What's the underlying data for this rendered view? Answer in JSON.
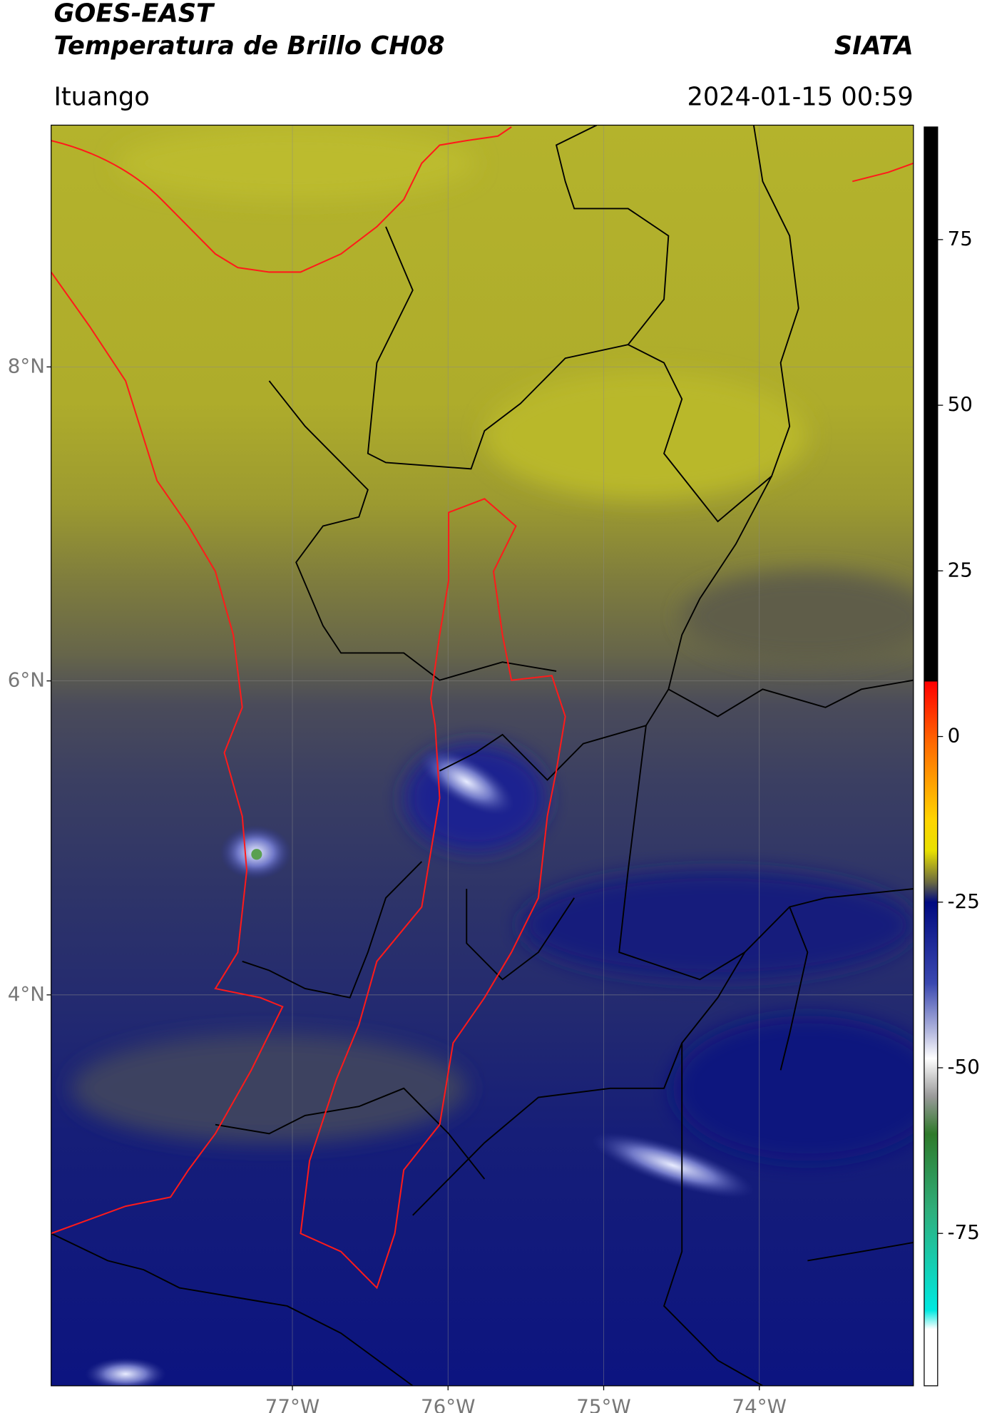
{
  "header": {
    "title": "GOES-EAST",
    "subtitle": "Temperatura de Brillo CH08",
    "brand": "SIATA",
    "region": "Ituango",
    "timestamp": "2024-01-15 00:59"
  },
  "map": {
    "lon_range": [
      -78.55,
      -73.01
    ],
    "lat_range": [
      1.51,
      9.54
    ],
    "lat_ticks": [
      {
        "value": 8,
        "label": "8°N"
      },
      {
        "value": 6,
        "label": "6°N"
      },
      {
        "value": 4,
        "label": "4°N"
      }
    ],
    "lon_ticks": [
      {
        "value": -77,
        "label": "77°W"
      },
      {
        "value": -76,
        "label": "76°W"
      },
      {
        "value": -75,
        "label": "75°W"
      },
      {
        "value": -74,
        "label": "74°W"
      }
    ]
  },
  "colorbar": {
    "range": [
      -98,
      92
    ],
    "ticks": [
      75,
      50,
      25,
      0,
      -25,
      -50,
      -75
    ]
  }
}
